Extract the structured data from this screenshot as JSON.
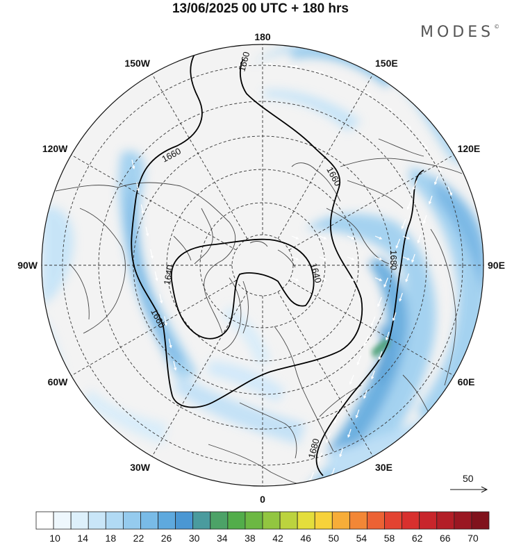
{
  "title": "13/06/2025  00 UTC  + 180 hrs",
  "brand": "MODES",
  "brand_mark": "©",
  "meridian_labels": [
    {
      "text": "180",
      "angle": 180
    },
    {
      "text": "150E",
      "angle": 150
    },
    {
      "text": "120E",
      "angle": 120
    },
    {
      "text": "90E",
      "angle": 90
    },
    {
      "text": "60E",
      "angle": 60
    },
    {
      "text": "30E",
      "angle": 30
    },
    {
      "text": "0",
      "angle": 0
    },
    {
      "text": "30W",
      "angle": -30
    },
    {
      "text": "60W",
      "angle": -60
    },
    {
      "text": "90W",
      "angle": -90
    },
    {
      "text": "120W",
      "angle": -120
    },
    {
      "text": "150W",
      "angle": -150
    }
  ],
  "contour_labels": [
    "1660",
    "1660",
    "1660",
    "1680",
    "1640",
    "1640",
    "1660",
    "1680"
  ],
  "vector_reference": "50",
  "colorbar": {
    "ticks": [
      "10",
      "14",
      "18",
      "22",
      "26",
      "30",
      "34",
      "38",
      "42",
      "46",
      "50",
      "54",
      "58",
      "62",
      "66",
      "70"
    ],
    "colors": [
      "#ffffff",
      "#eef7fd",
      "#ddf0fb",
      "#c9e6f8",
      "#b1daf4",
      "#95cbee",
      "#79bbe7",
      "#5ea9de",
      "#4a97d3",
      "#4a9b9e",
      "#4ca267",
      "#52ad4a",
      "#6cb843",
      "#92c640",
      "#bcd33e",
      "#e4de3b",
      "#f7d23a",
      "#f7ad38",
      "#f38736",
      "#ec6234",
      "#e34331",
      "#d8302e",
      "#c8252b",
      "#b31e27",
      "#9a1722",
      "#80121c"
    ]
  }
}
